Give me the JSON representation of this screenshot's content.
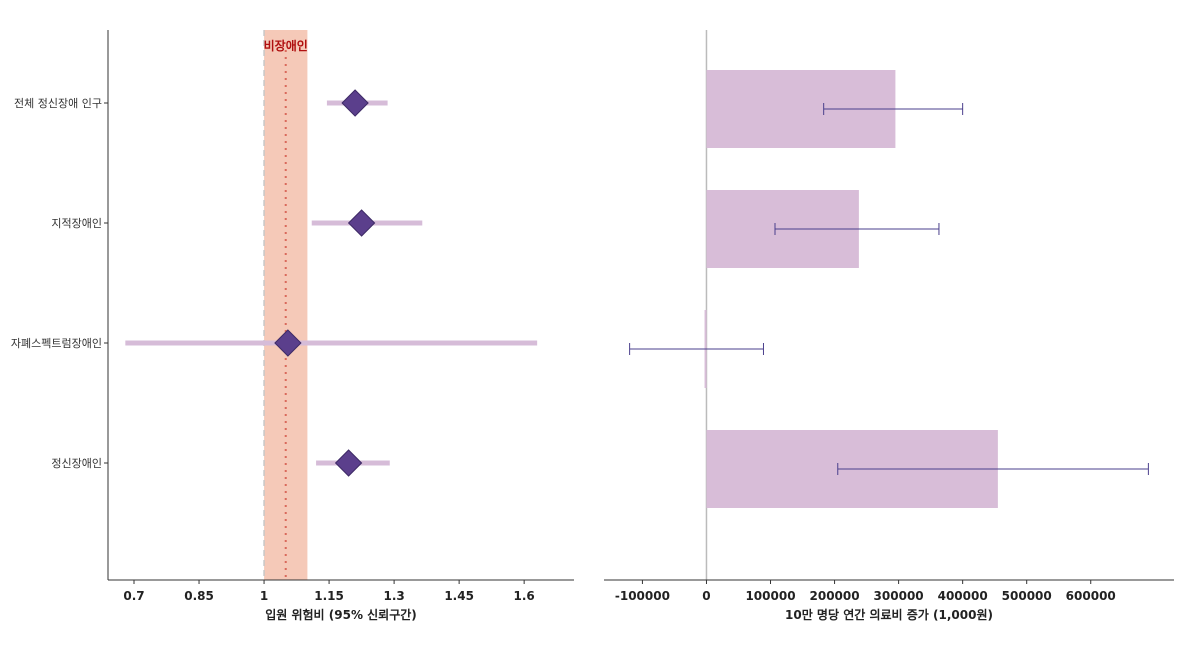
{
  "chart_data": [
    {
      "type": "forest",
      "categories": [
        "전체 정신장애 인구",
        "지적장애인",
        "자폐스펙트럼장애인",
        "정신장애인"
      ],
      "estimate": [
        1.21,
        1.225,
        1.055,
        1.195
      ],
      "ci_low": [
        1.145,
        1.11,
        0.68,
        1.12
      ],
      "ci_high": [
        1.285,
        1.365,
        1.63,
        1.29
      ],
      "xlim": [
        0.64,
        1.715
      ],
      "xticks": [
        0.7,
        0.85,
        1,
        1.15,
        1.3,
        1.45,
        1.6
      ],
      "xlabel": "입원 위험비 (95% 신뢰구간)",
      "reference": {
        "label": "비장애인",
        "estimate": 1.05,
        "ci_low": 1.0,
        "ci_high": 1.1,
        "null_value": 1.0
      },
      "colors": {
        "marker": "#5b3f8c",
        "ci_bar": "#d6bcd8",
        "reference_band": "#f5c9b8",
        "reference_line": "#d9695b",
        "reference_text": "#b01010",
        "null_line": "#c8c8c8"
      }
    },
    {
      "type": "bar",
      "orientation": "horizontal",
      "categories": [
        "전체 정신장애 인구",
        "지적장애인",
        "자폐스펙트럼장애인",
        "정신장애인"
      ],
      "values": [
        295000,
        238000,
        -3000,
        455000
      ],
      "ci_low": [
        183000,
        107000,
        -120000,
        205000
      ],
      "ci_high": [
        400000,
        363000,
        89000,
        690000
      ],
      "xlim": [
        -160000,
        730000
      ],
      "xticks": [
        -100000,
        0,
        100000,
        200000,
        300000,
        400000,
        500000,
        600000
      ],
      "xlabel": "10만 명당 연간 의료비 증가 (1,000원)",
      "colors": {
        "bar": "#d8bdd8",
        "error_bar": "#4a3f8c",
        "zero_line": "#bbbbbb"
      }
    }
  ]
}
